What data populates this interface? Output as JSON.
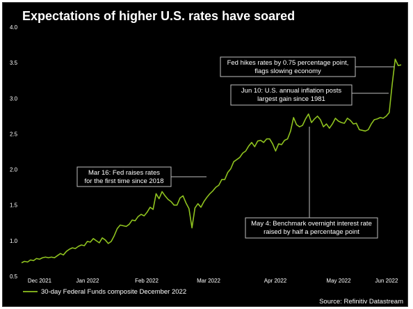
{
  "chart_data": {
    "type": "line",
    "title": "Expectations of higher U.S. rates have soared",
    "xlabel": "",
    "ylabel": "",
    "ylim": [
      0.5,
      4.0
    ],
    "yticks": [
      "0.5",
      "1.0",
      "1.5",
      "2.0",
      "2.5",
      "3.0",
      "3.5",
      "4.0"
    ],
    "xticks": [
      "Dec 2021",
      "Jan 2022",
      "Feb 2022",
      "Mar 2022",
      "Apr 2022",
      "May 2022",
      "Jun 2022"
    ],
    "grid": false,
    "legend_position": "bottom-left",
    "series": [
      {
        "name": "30-day Federal Funds composite December 2022",
        "color": "#8fc31f",
        "values": [
          0.69,
          0.71,
          0.7,
          0.73,
          0.72,
          0.75,
          0.74,
          0.76,
          0.77,
          0.76,
          0.77,
          0.76,
          0.79,
          0.82,
          0.8,
          0.85,
          0.88,
          0.9,
          0.89,
          0.92,
          0.94,
          0.93,
          0.99,
          0.98,
          1.03,
          1.0,
          0.97,
          1.04,
          1.01,
          0.96,
          0.99,
          1.07,
          1.17,
          1.22,
          1.21,
          1.2,
          1.23,
          1.29,
          1.28,
          1.34,
          1.37,
          1.35,
          1.4,
          1.47,
          1.44,
          1.66,
          1.59,
          1.69,
          1.63,
          1.58,
          1.55,
          1.5,
          1.5,
          1.6,
          1.63,
          1.53,
          1.45,
          1.18,
          1.46,
          1.52,
          1.47,
          1.55,
          1.61,
          1.66,
          1.7,
          1.75,
          1.78,
          1.86,
          1.86,
          1.96,
          2.01,
          2.11,
          2.14,
          2.17,
          2.23,
          2.26,
          2.33,
          2.38,
          2.32,
          2.4,
          2.41,
          2.38,
          2.43,
          2.43,
          2.36,
          2.26,
          2.36,
          2.35,
          2.41,
          2.43,
          2.54,
          2.73,
          2.63,
          2.6,
          2.62,
          2.71,
          2.78,
          2.66,
          2.71,
          2.75,
          2.7,
          2.6,
          2.64,
          2.58,
          2.64,
          2.72,
          2.68,
          2.66,
          2.65,
          2.72,
          2.69,
          2.64,
          2.65,
          2.56,
          2.55,
          2.54,
          2.56,
          2.64,
          2.7,
          2.71,
          2.73,
          2.72,
          2.75,
          2.8,
          3.2,
          3.55,
          3.46,
          3.47
        ]
      }
    ],
    "annotations": [
      {
        "lines": [
          "Fed hikes rates by 0.75 percentage point,",
          "flags slowing economy"
        ],
        "date": "Jun 2022"
      },
      {
        "lines": [
          "Jun 10: U.S. annual inflation posts",
          "largest gain since 1981"
        ],
        "date": "Jun 10"
      },
      {
        "lines": [
          "Mar 16: Fed raises rates",
          "for the first time since 2018"
        ],
        "date": "Mar 16"
      },
      {
        "lines": [
          "May 4: Benchmark overnight interest rate",
          "raised by half a percentage point"
        ],
        "date": "May 4"
      }
    ],
    "source": "Source: Refinitiv Datastream"
  }
}
